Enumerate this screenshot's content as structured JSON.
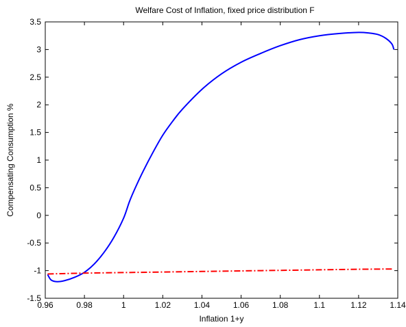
{
  "chart_data": {
    "type": "line",
    "title": "Welfare Cost of Inflation, fixed price distribution F",
    "xlabel": "Inflation 1+y",
    "ylabel": "Compensating Consumption %",
    "xlim": [
      0.96,
      1.14
    ],
    "ylim": [
      -1.5,
      3.5
    ],
    "xticks": [
      0.96,
      0.98,
      1,
      1.02,
      1.04,
      1.06,
      1.08,
      1.1,
      1.12,
      1.14
    ],
    "xtick_labels": [
      "0.96",
      "0.98",
      "1",
      "1.02",
      "1.04",
      "1.06",
      "1.08",
      "1.1",
      "1.12",
      "1.14"
    ],
    "yticks": [
      -1.5,
      -1,
      -0.5,
      0,
      0.5,
      1,
      1.5,
      2,
      2.5,
      3,
      3.5
    ],
    "ytick_labels": [
      "-1.5",
      "-1",
      "-0.5",
      "0",
      "0.5",
      "1",
      "1.5",
      "2",
      "2.5",
      "3",
      "3.5"
    ],
    "grid": false,
    "legend": "none",
    "series": [
      {
        "color": "#0000ff",
        "style": "solid",
        "x": [
          0.9612,
          0.963,
          0.966,
          0.97,
          0.975,
          0.98,
          0.985,
          0.99,
          0.995,
          1.0,
          1.003,
          1.006,
          1.01,
          1.015,
          1.02,
          1.025,
          1.03,
          1.04,
          1.05,
          1.06,
          1.07,
          1.08,
          1.09,
          1.1,
          1.11,
          1.12,
          1.125,
          1.13,
          1.134,
          1.137,
          1.138
        ],
        "y": [
          -1.07,
          -1.17,
          -1.2,
          -1.18,
          -1.12,
          -1.03,
          -0.88,
          -0.67,
          -0.4,
          -0.05,
          0.25,
          0.5,
          0.8,
          1.14,
          1.45,
          1.7,
          1.92,
          2.28,
          2.56,
          2.77,
          2.93,
          3.07,
          3.18,
          3.25,
          3.29,
          3.31,
          3.3,
          3.27,
          3.2,
          3.1,
          3.0
        ]
      },
      {
        "color": "#ff0000",
        "style": "dashdot",
        "x": [
          0.9612,
          0.98,
          1.0,
          1.02,
          1.04,
          1.06,
          1.08,
          1.1,
          1.12,
          1.138
        ],
        "y": [
          -1.06,
          -1.045,
          -1.035,
          -1.025,
          -1.015,
          -1.005,
          -0.995,
          -0.985,
          -0.975,
          -0.97
        ]
      }
    ]
  }
}
